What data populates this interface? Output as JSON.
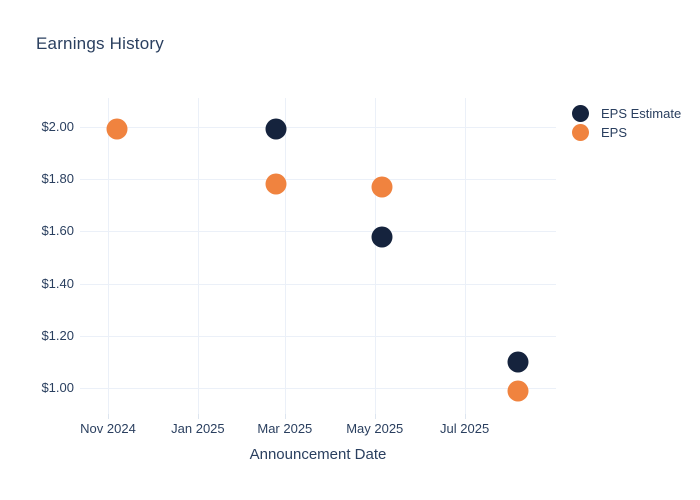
{
  "title": "Earnings History",
  "colors": {
    "background": "#ffffff",
    "text": "#2a3f5f",
    "grid": "#ebf0f8",
    "tick": "#dde5ef",
    "estimate": "#15233d",
    "eps": "#f0833f"
  },
  "legend": {
    "items": [
      {
        "label": "EPS Estimate",
        "color": "#15233d"
      },
      {
        "label": "EPS",
        "color": "#f0833f"
      }
    ]
  },
  "chart_data": {
    "type": "scatter",
    "title": "Earnings History",
    "xlabel": "Announcement Date",
    "ylabel": "",
    "grid": true,
    "legend_position": "outside-top-right",
    "marker_diameter_px": 21,
    "xlim": [
      "2024-10-13",
      "2025-09-01"
    ],
    "ylim": [
      0.902,
      2.11
    ],
    "x_ticks": [
      {
        "date": "2024-11-01",
        "label": "Nov 2024"
      },
      {
        "date": "2025-01-01",
        "label": "Jan 2025"
      },
      {
        "date": "2025-03-01",
        "label": "Mar 2025"
      },
      {
        "date": "2025-05-01",
        "label": "May 2025"
      },
      {
        "date": "2025-07-01",
        "label": "Jul 2025"
      }
    ],
    "y_ticks": [
      {
        "value": 1.0,
        "label": "$1.00"
      },
      {
        "value": 1.2,
        "label": "$1.20"
      },
      {
        "value": 1.4,
        "label": "$1.40"
      },
      {
        "value": 1.6,
        "label": "$1.60"
      },
      {
        "value": 1.8,
        "label": "$1.80"
      },
      {
        "value": 2.0,
        "label": "$2.00"
      }
    ],
    "series": [
      {
        "name": "EPS Estimate",
        "color": "#15233d",
        "points": [
          {
            "date": "2025-02-23",
            "value": 1.99
          },
          {
            "date": "2025-05-06",
            "value": 1.58
          },
          {
            "date": "2025-08-06",
            "value": 1.1
          }
        ]
      },
      {
        "name": "EPS",
        "color": "#f0833f",
        "points": [
          {
            "date": "2024-11-07",
            "value": 1.99
          },
          {
            "date": "2025-02-23",
            "value": 1.78
          },
          {
            "date": "2025-05-06",
            "value": 1.77
          },
          {
            "date": "2025-08-06",
            "value": 0.99
          }
        ]
      }
    ]
  }
}
